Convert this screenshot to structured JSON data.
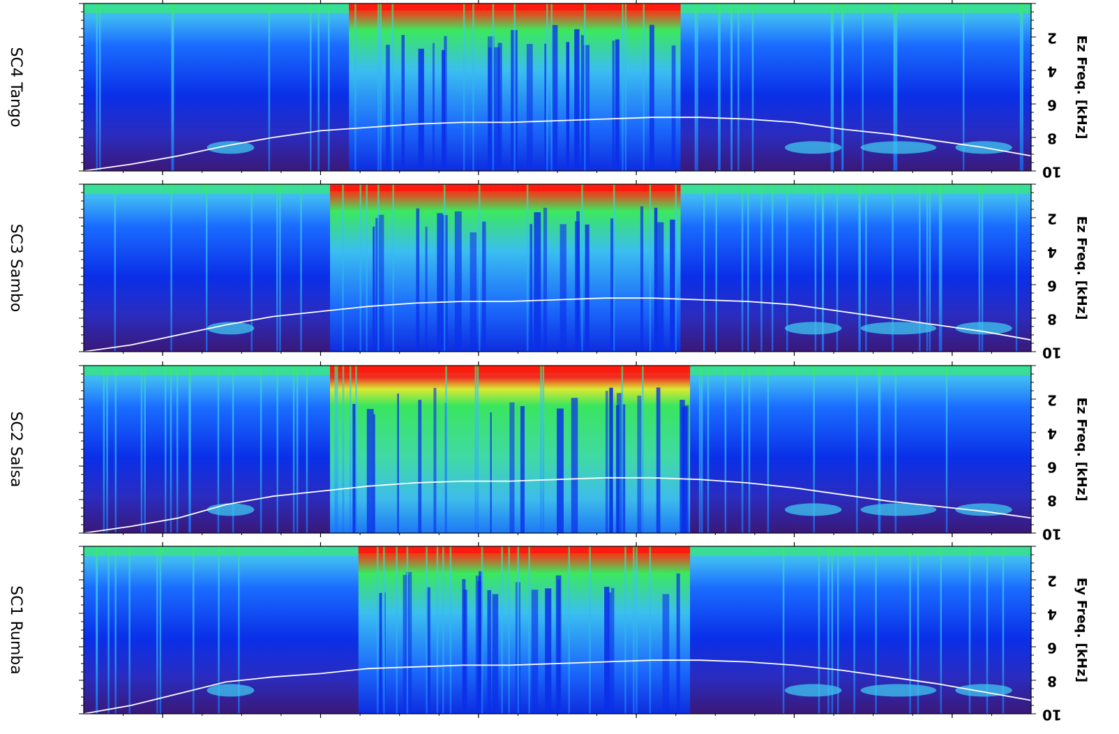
{
  "chart_data": [
    {
      "type": "heatmap",
      "panel": "SC4 Tango",
      "ylabel": "Ez Freq. [kHz]",
      "ytick_labels": [
        "2",
        "4",
        "6",
        "8",
        "10"
      ],
      "ylim": [
        0,
        10
      ],
      "overlay_line": {
        "color": "#ffffff",
        "x": [
          0.0,
          0.05,
          0.1,
          0.15,
          0.2,
          0.25,
          0.3,
          0.35,
          0.4,
          0.45,
          0.5,
          0.55,
          0.6,
          0.65,
          0.7,
          0.75,
          0.8,
          0.85,
          0.9,
          0.95,
          1.0
        ],
        "y": [
          10.0,
          9.6,
          9.1,
          8.5,
          8.0,
          7.6,
          7.4,
          7.2,
          7.1,
          7.1,
          7.0,
          6.9,
          6.8,
          6.8,
          6.9,
          7.1,
          7.5,
          7.8,
          8.2,
          8.6,
          9.1
        ]
      }
    },
    {
      "type": "heatmap",
      "panel": "SC3 Sambo",
      "ylabel": "Ez Freq. [kHz]",
      "ytick_labels": [
        "2",
        "4",
        "6",
        "8",
        "10"
      ],
      "ylim": [
        0,
        10
      ],
      "overlay_line": {
        "color": "#ffffff",
        "x": [
          0.0,
          0.05,
          0.1,
          0.15,
          0.2,
          0.25,
          0.3,
          0.35,
          0.4,
          0.45,
          0.5,
          0.55,
          0.6,
          0.65,
          0.7,
          0.75,
          0.8,
          0.85,
          0.9,
          0.95,
          1.0
        ],
        "y": [
          10.0,
          9.6,
          9.0,
          8.4,
          7.9,
          7.6,
          7.3,
          7.1,
          7.0,
          7.0,
          6.9,
          6.8,
          6.8,
          6.9,
          7.0,
          7.2,
          7.6,
          8.0,
          8.4,
          8.8,
          9.3
        ]
      }
    },
    {
      "type": "heatmap",
      "panel": "SC2 Salsa",
      "ylabel": "Ez Freq. [kHz]",
      "ytick_labels": [
        "2",
        "4",
        "6",
        "8",
        "10"
      ],
      "ylim": [
        0,
        10
      ],
      "overlay_line": {
        "color": "#ffffff",
        "x": [
          0.0,
          0.05,
          0.1,
          0.15,
          0.2,
          0.25,
          0.3,
          0.35,
          0.4,
          0.45,
          0.5,
          0.55,
          0.6,
          0.65,
          0.7,
          0.75,
          0.8,
          0.85,
          0.9,
          0.95,
          1.0
        ],
        "y": [
          10.0,
          9.6,
          9.1,
          8.3,
          7.8,
          7.5,
          7.2,
          7.0,
          6.9,
          6.9,
          6.8,
          6.7,
          6.7,
          6.8,
          7.0,
          7.3,
          7.7,
          8.1,
          8.4,
          8.7,
          9.1
        ]
      }
    },
    {
      "type": "heatmap",
      "panel": "SC1 Rumba",
      "ylabel": "Ey Freq. [kHz]",
      "ytick_labels": [
        "2",
        "4",
        "6",
        "8",
        "10"
      ],
      "ylim": [
        0,
        10
      ],
      "overlay_line": {
        "color": "#ffffff",
        "x": [
          0.0,
          0.05,
          0.1,
          0.15,
          0.2,
          0.25,
          0.3,
          0.35,
          0.4,
          0.45,
          0.5,
          0.55,
          0.6,
          0.65,
          0.7,
          0.75,
          0.8,
          0.85,
          0.9,
          0.95,
          1.0
        ],
        "y": [
          10.0,
          9.5,
          8.8,
          8.1,
          7.8,
          7.6,
          7.3,
          7.2,
          7.1,
          7.1,
          7.0,
          6.9,
          6.8,
          6.8,
          6.9,
          7.1,
          7.4,
          7.8,
          8.2,
          8.7,
          9.2
        ]
      }
    }
  ],
  "colors": {
    "background_low": "#3a1878",
    "deep_blue": "#0a2fe8",
    "blue": "#1565ff",
    "cyan": "#3fc8f0",
    "green": "#3cf050",
    "yellow": "#d8f020",
    "red": "#ff1a10"
  }
}
